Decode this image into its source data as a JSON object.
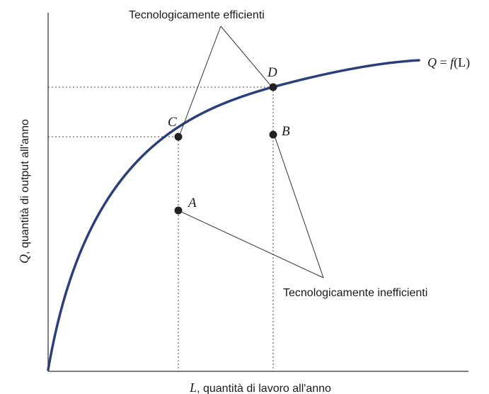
{
  "figure": {
    "curve_label_q": "Q",
    "curve_label_rest": " = ",
    "curve_label_f": "f",
    "curve_label_arg": "(L)",
    "x_axis_label_var": "L",
    "x_axis_label_text": ", quantità di lavoro all'anno",
    "y_axis_label_var": "Q",
    "y_axis_label_text": ", quantità di output all'anno",
    "efficient_label": "Tecnologicamente efficienti",
    "inefficient_label": "Tecnologicamente inefficienti",
    "points": [
      {
        "id": "A",
        "label": "A"
      },
      {
        "id": "B",
        "label": "B"
      },
      {
        "id": "C",
        "label": "C"
      },
      {
        "id": "D",
        "label": "D"
      }
    ],
    "colors": {
      "curve": "#2b3f7a",
      "axis": "#555555",
      "point": "#222222",
      "guide": "#444444",
      "text": "#1a1a1a"
    }
  }
}
